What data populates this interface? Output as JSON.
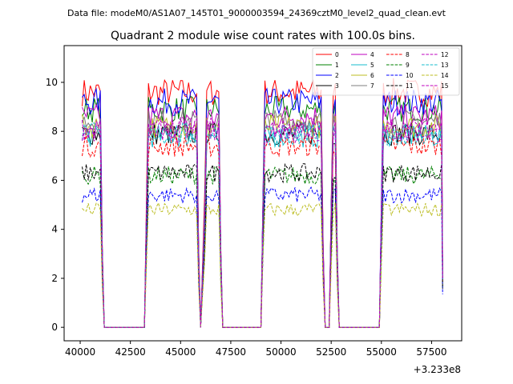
{
  "chart_data": {
    "type": "line",
    "suptitle": "Data file: modeM0/AS1A07_145T01_9000003594_24369cztM0_level2_quad_clean.evt",
    "title": "Quadrant 2 module wise count rates with 100.0s bins.",
    "xlabel": "",
    "ylabel": "",
    "x_offset_label": "+3.233e8",
    "xlim": [
      39200,
      59000
    ],
    "ylim": [
      -0.55,
      11.5
    ],
    "x_ticks": [
      40000,
      42500,
      45000,
      47500,
      50000,
      52500,
      55000,
      57500
    ],
    "x_tick_labels": [
      "40000",
      "42500",
      "45000",
      "47500",
      "50000",
      "52500",
      "55000",
      "57500"
    ],
    "y_ticks": [
      0,
      2,
      4,
      6,
      8,
      10
    ],
    "y_tick_labels": [
      "0",
      "2",
      "4",
      "6",
      "8",
      "10"
    ],
    "legend_position": "top-right",
    "bin_width": 100,
    "segments": [
      {
        "start": 40100,
        "end": 41000,
        "off_end": 43200
      },
      {
        "start": 43300,
        "end": 45800,
        "off_end": 46000
      },
      {
        "start": 46200,
        "end": 46900,
        "off_end": 49000
      },
      {
        "start": 49100,
        "end": 52000,
        "off_end": 52400
      },
      {
        "start": 52500,
        "end": 52700,
        "off_end": 54900
      },
      {
        "start": 55000,
        "end": 58000,
        "off_end": null
      }
    ],
    "series": [
      {
        "name": "0",
        "level": 9.6,
        "color": "#ff0000",
        "dashed": false
      },
      {
        "name": "1",
        "level": 8.9,
        "color": "#008000",
        "dashed": false
      },
      {
        "name": "2",
        "level": 9.2,
        "color": "#0000ff",
        "dashed": false
      },
      {
        "name": "3",
        "level": 7.9,
        "color": "#000000",
        "dashed": false
      },
      {
        "name": "4",
        "level": 8.6,
        "color": "#bf00bf",
        "dashed": false
      },
      {
        "name": "5",
        "level": 7.8,
        "color": "#17becf",
        "dashed": false
      },
      {
        "name": "6",
        "level": 8.2,
        "color": "#bcbd22",
        "dashed": false
      },
      {
        "name": "7",
        "level": 8.4,
        "color": "#7f7f7f",
        "dashed": false
      },
      {
        "name": "8",
        "level": 7.4,
        "color": "#ff0000",
        "dashed": true
      },
      {
        "name": "9",
        "level": 6.2,
        "color": "#008000",
        "dashed": true
      },
      {
        "name": "10",
        "level": 5.4,
        "color": "#0000ff",
        "dashed": true
      },
      {
        "name": "11",
        "level": 6.3,
        "color": "#000000",
        "dashed": true
      },
      {
        "name": "12",
        "level": 8.0,
        "color": "#bf00bf",
        "dashed": true
      },
      {
        "name": "13",
        "level": 7.9,
        "color": "#17becf",
        "dashed": true
      },
      {
        "name": "14",
        "level": 4.8,
        "color": "#bcbd22",
        "dashed": true
      },
      {
        "name": "15",
        "level": 8.1,
        "color": "#bf00bf",
        "dashed": true
      }
    ]
  }
}
